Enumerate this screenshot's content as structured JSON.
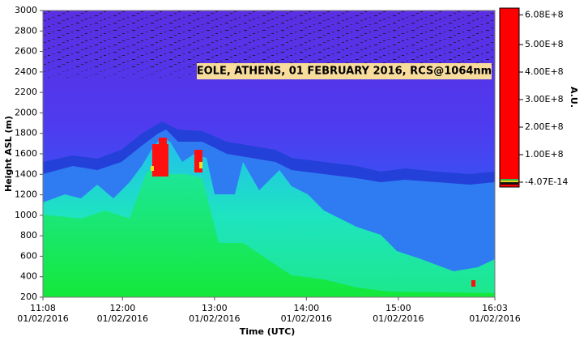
{
  "chart_data": {
    "type": "heatmap",
    "title": "EOLE, ATHENS, 01 FEBRUARY 2016, RCS@1064nm",
    "xlabel": "Time (UTC)",
    "ylabel": "Height ASL (m)",
    "xlim": [
      "11:08",
      "16:03"
    ],
    "xticks": [
      {
        "time": "11:08",
        "date": "01/02/2016"
      },
      {
        "time": "12:00",
        "date": "01/02/2016"
      },
      {
        "time": "13:00",
        "date": "01/02/2016"
      },
      {
        "time": "14:00",
        "date": "01/02/2016"
      },
      {
        "time": "15:00",
        "date": "01/02/2016"
      },
      {
        "time": "16:03",
        "date": "01/02/2016"
      }
    ],
    "ylim": [
      200,
      3000
    ],
    "yticks": [
      200,
      400,
      600,
      800,
      1000,
      1200,
      1400,
      1600,
      1800,
      2000,
      2200,
      2400,
      2600,
      2800,
      3000
    ],
    "colorbar": {
      "label": "A.U.",
      "color": "#ff0000",
      "lim": [
        -4.07e-14,
        608000000
      ],
      "ticks": [
        {
          "value": 608000000,
          "label": "6.08E+8"
        },
        {
          "value": 500000000,
          "label": "5.00E+8"
        },
        {
          "value": 400000000,
          "label": "4.00E+8"
        },
        {
          "value": 300000000,
          "label": "3.00E+8"
        },
        {
          "value": 200000000,
          "label": "2.00E+8"
        },
        {
          "value": 100000000,
          "label": "1.00E+8"
        },
        {
          "value": -4.07e-14,
          "label": "-4.07E-14"
        }
      ]
    }
  }
}
